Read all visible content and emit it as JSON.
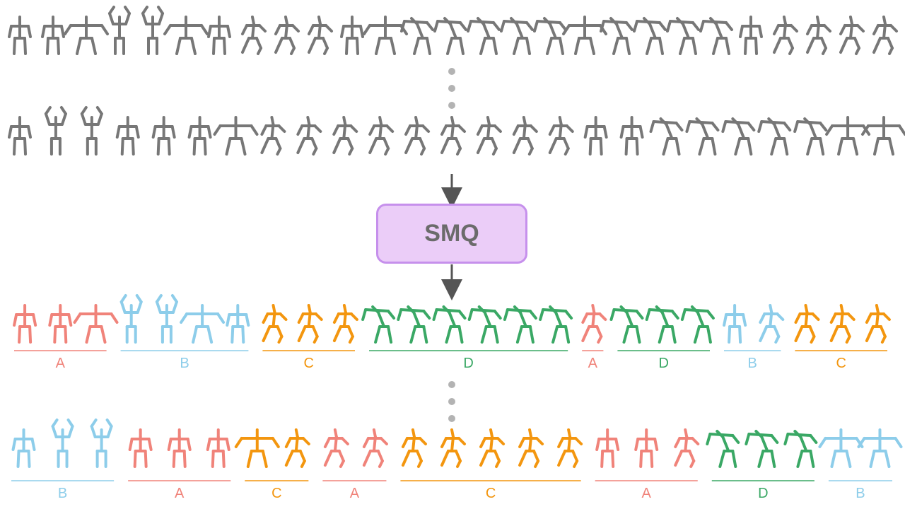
{
  "colors": {
    "input": "#777777",
    "A": "#f0837a",
    "B": "#8dcdea",
    "C": "#f3960f",
    "D": "#3aa865",
    "arrow": "#555555",
    "dots": "#b3b3b3"
  },
  "model": {
    "label": "SMQ"
  },
  "input_rows": [
    {
      "poses": [
        "stand",
        "stand",
        "wide",
        "arms-up",
        "arms-up",
        "wide",
        "stand",
        "walk",
        "walk",
        "walk",
        "stand",
        "wide",
        "bent",
        "bent",
        "bent",
        "bent",
        "bent",
        "wide",
        "bent",
        "bent",
        "bent",
        "bent",
        "stand",
        "walk",
        "walk",
        "walk",
        "walk"
      ]
    },
    {
      "poses": [
        "stand",
        "arms-up",
        "arms-up",
        "stand",
        "stand",
        "stand",
        "wide",
        "walk",
        "walk",
        "walk",
        "walk",
        "walk",
        "walk",
        "walk",
        "walk",
        "walk",
        "stand",
        "stand",
        "bent",
        "bent",
        "bent",
        "bent",
        "bent",
        "wide",
        "wide"
      ]
    }
  ],
  "output_rows": [
    {
      "segments": [
        {
          "cls": "A",
          "label": "A",
          "poses": [
            "stand",
            "stand",
            "wide"
          ]
        },
        {
          "cls": "B",
          "label": "B",
          "poses": [
            "arms-up",
            "arms-up",
            "wide",
            "stand"
          ]
        },
        {
          "cls": "C",
          "label": "C",
          "poses": [
            "walk",
            "walk",
            "walk"
          ]
        },
        {
          "cls": "D",
          "label": "D",
          "poses": [
            "bent",
            "bent",
            "bent",
            "bent",
            "bent",
            "bent"
          ]
        },
        {
          "cls": "A",
          "label": "A",
          "poses": [
            "walk"
          ]
        },
        {
          "cls": "D",
          "label": "D",
          "poses": [
            "bent",
            "bent",
            "bent"
          ]
        },
        {
          "cls": "B",
          "label": "B",
          "poses": [
            "stand",
            "walk"
          ]
        },
        {
          "cls": "C",
          "label": "C",
          "poses": [
            "walk",
            "walk",
            "walk"
          ]
        }
      ]
    },
    {
      "segments": [
        {
          "cls": "B",
          "label": "B",
          "poses": [
            "stand",
            "arms-up",
            "arms-up"
          ]
        },
        {
          "cls": "A",
          "label": "A",
          "poses": [
            "stand",
            "stand",
            "stand"
          ]
        },
        {
          "cls": "C",
          "label": "C",
          "poses": [
            "wide",
            "walk"
          ]
        },
        {
          "cls": "A",
          "label": "A",
          "poses": [
            "walk",
            "walk"
          ]
        },
        {
          "cls": "C",
          "label": "C",
          "poses": [
            "walk",
            "walk",
            "walk",
            "walk",
            "walk"
          ]
        },
        {
          "cls": "A",
          "label": "A",
          "poses": [
            "stand",
            "stand",
            "walk"
          ]
        },
        {
          "cls": "D",
          "label": "D",
          "poses": [
            "bent",
            "bent",
            "bent"
          ]
        },
        {
          "cls": "B",
          "label": "B",
          "poses": [
            "wide",
            "wide"
          ]
        }
      ]
    }
  ]
}
